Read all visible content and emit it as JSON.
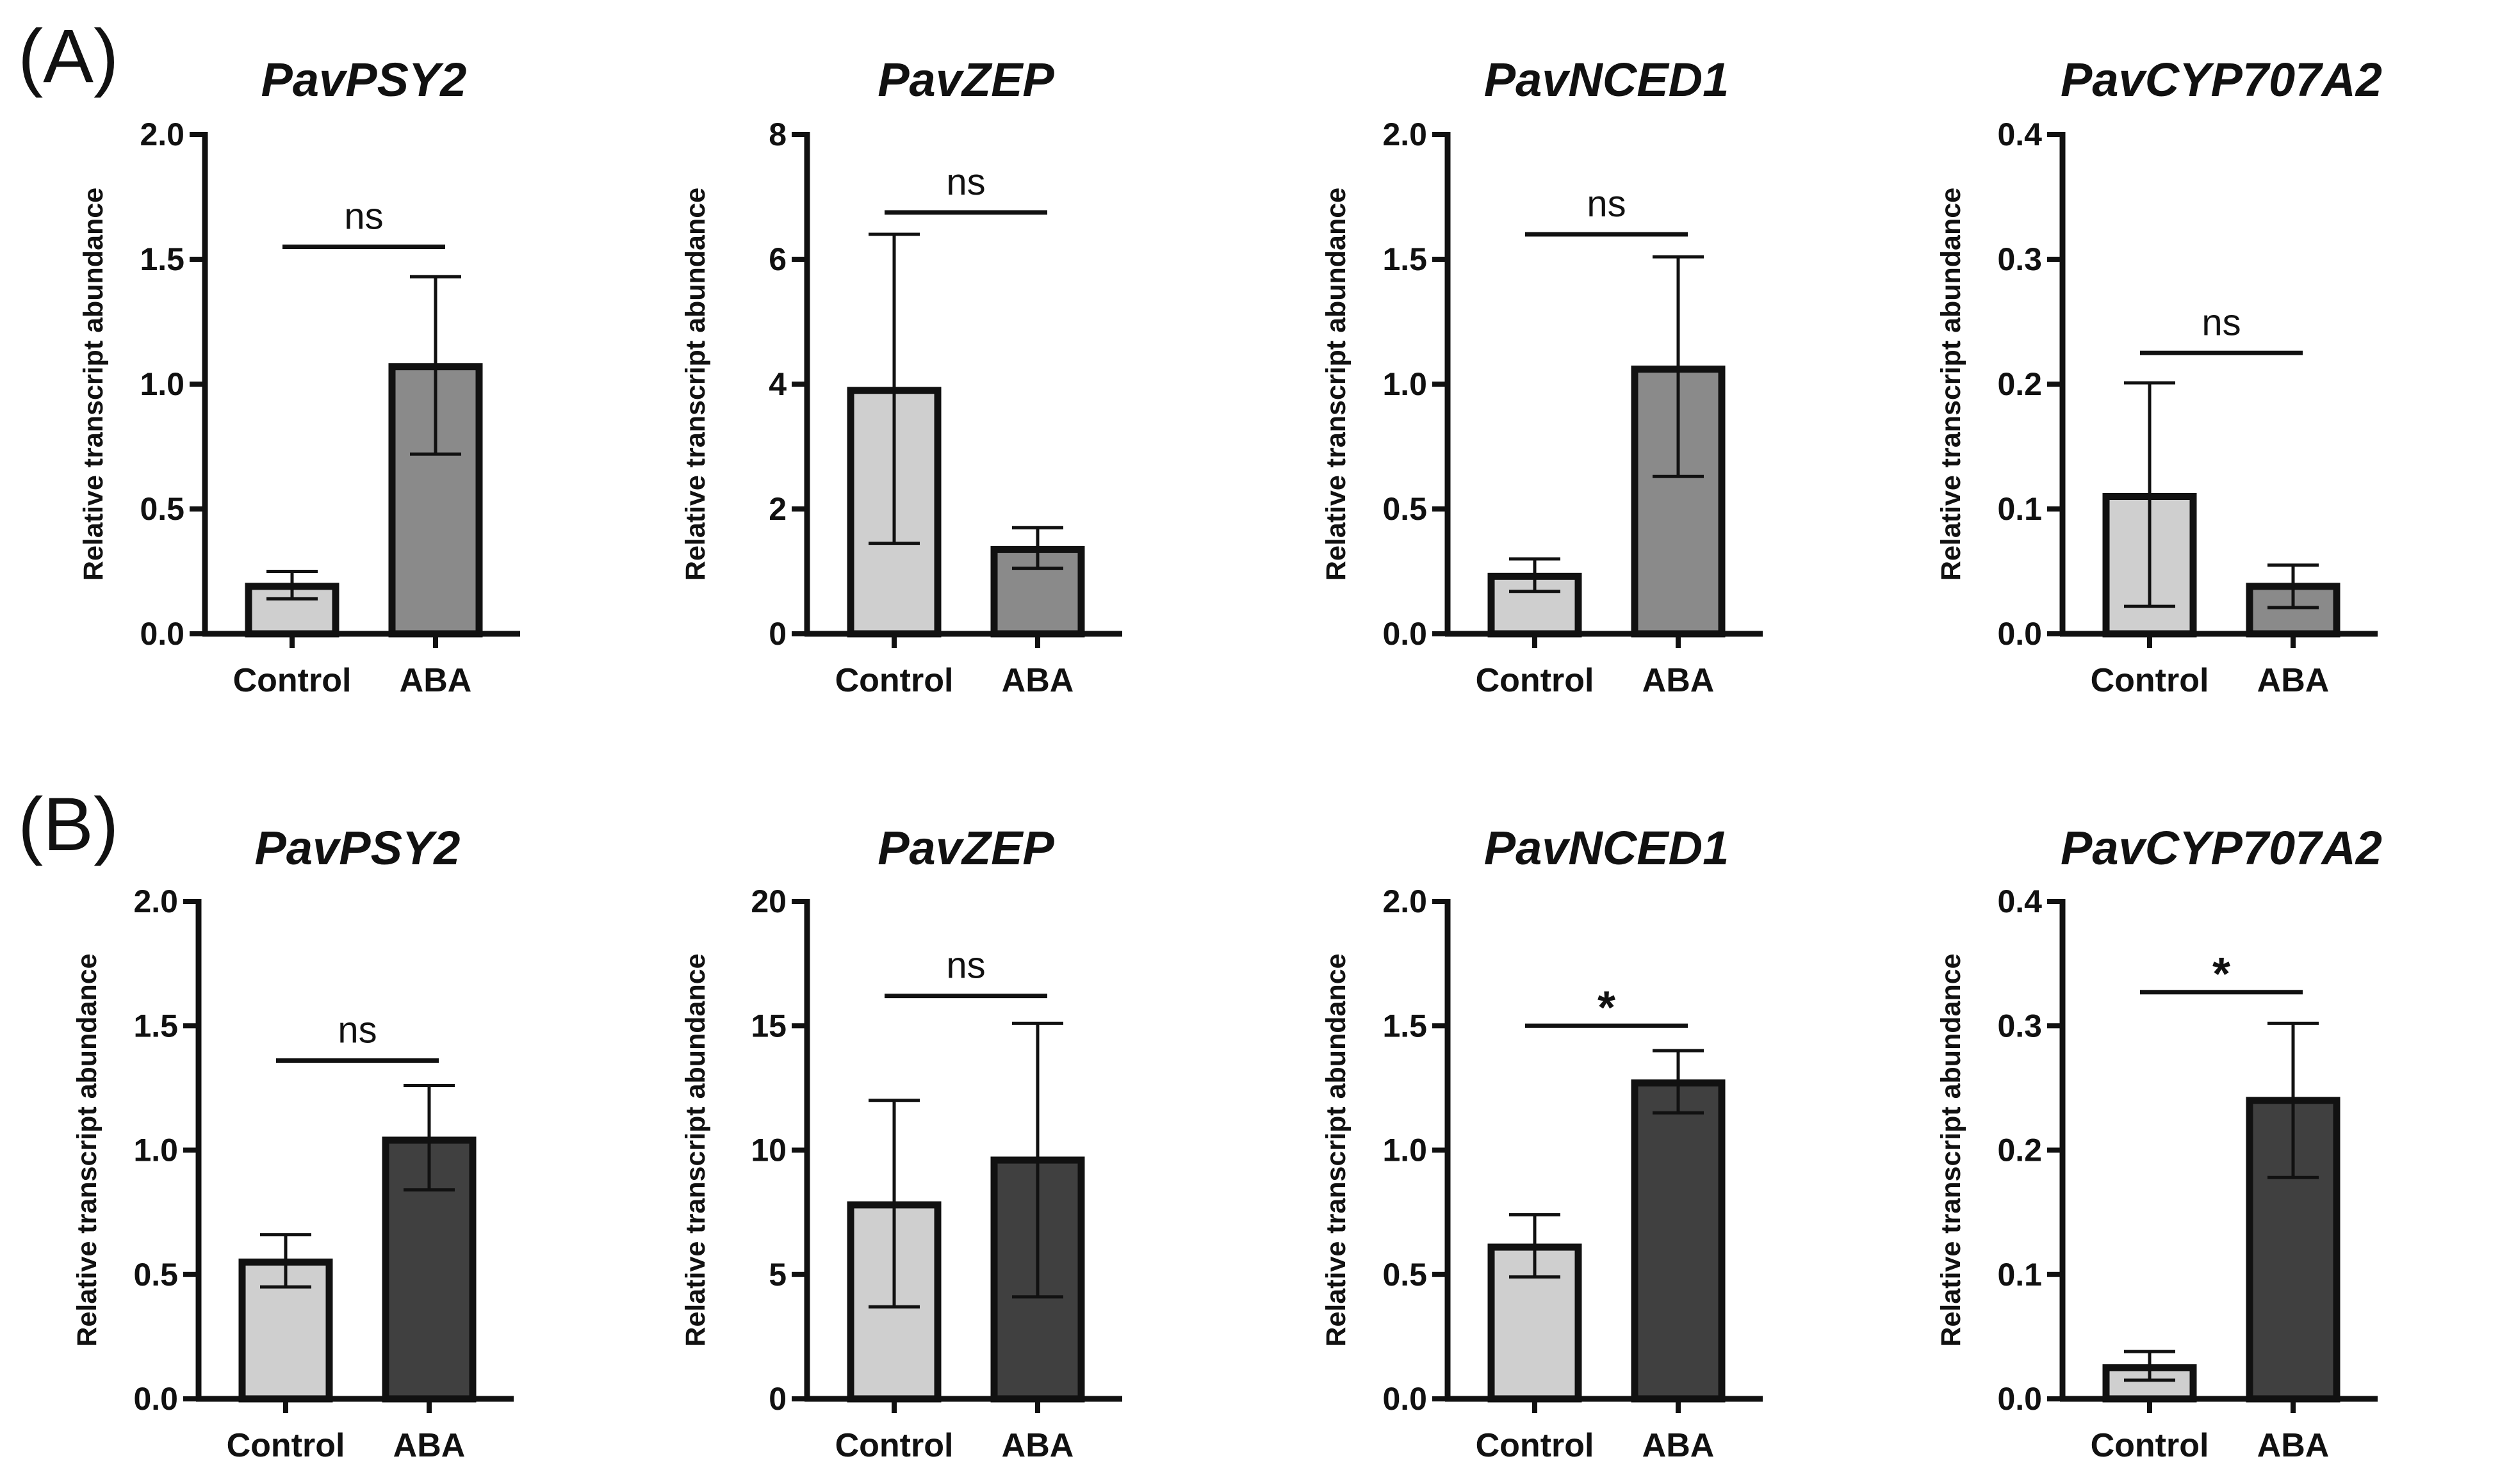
{
  "figure": {
    "panels": [
      {
        "label": "(A)"
      },
      {
        "label": "(B)"
      }
    ]
  },
  "chart_data": [
    {
      "id": "A1",
      "panel": "(A)",
      "type": "bar",
      "title": "PavPSY2",
      "ylabel": "Relative transcript abundance",
      "xlabel": "",
      "categories": [
        "Control",
        "ABA"
      ],
      "values": [
        0.19,
        1.07
      ],
      "errors": [
        [
          0.14,
          0.25
        ],
        [
          0.72,
          1.43
        ]
      ],
      "bar_colors": [
        "#cfcfcf",
        "#8a8a8a"
      ],
      "ylim": [
        0,
        2.0
      ],
      "yticks": [
        "0.0",
        "0.5",
        "1.0",
        "1.5",
        "2.0"
      ],
      "significance": "ns",
      "sig_level": 1.55
    },
    {
      "id": "A2",
      "panel": "(A)",
      "type": "bar",
      "title": "PavZEP",
      "ylabel": "Relative transcript abundance",
      "xlabel": "",
      "categories": [
        "Control",
        "ABA"
      ],
      "values": [
        3.9,
        1.35
      ],
      "errors": [
        [
          1.45,
          6.4
        ],
        [
          1.05,
          1.7
        ]
      ],
      "bar_colors": [
        "#cfcfcf",
        "#8a8a8a"
      ],
      "ylim": [
        0,
        8
      ],
      "yticks": [
        "0",
        "2",
        "4",
        "6",
        "8"
      ],
      "significance": "ns",
      "sig_level": 6.75
    },
    {
      "id": "A3",
      "panel": "(A)",
      "type": "bar",
      "title": "PavNCED1",
      "ylabel": "Relative transcript abundance",
      "xlabel": "",
      "categories": [
        "Control",
        "ABA"
      ],
      "values": [
        0.23,
        1.06
      ],
      "errors": [
        [
          0.17,
          0.3
        ],
        [
          0.63,
          1.51
        ]
      ],
      "bar_colors": [
        "#cfcfcf",
        "#8a8a8a"
      ],
      "ylim": [
        0,
        2.0
      ],
      "yticks": [
        "0.0",
        "0.5",
        "1.0",
        "1.5",
        "2.0"
      ],
      "significance": "ns",
      "sig_level": 1.6
    },
    {
      "id": "A4",
      "panel": "(A)",
      "type": "bar",
      "title": "PavCYP707A2",
      "ylabel": "Relative transcript abundance",
      "xlabel": "",
      "categories": [
        "Control",
        "ABA"
      ],
      "values": [
        0.11,
        0.038
      ],
      "errors": [
        [
          0.022,
          0.201
        ],
        [
          0.021,
          0.055
        ]
      ],
      "bar_colors": [
        "#cfcfcf",
        "#8a8a8a"
      ],
      "ylim": [
        0,
        0.4
      ],
      "yticks": [
        "0.0",
        "0.1",
        "0.2",
        "0.3",
        "0.4"
      ],
      "significance": "ns",
      "sig_level": 0.225
    },
    {
      "id": "B1",
      "panel": "(B)",
      "type": "bar",
      "title": "PavPSY2",
      "ylabel": "Relative transcript abundance",
      "xlabel": "",
      "categories": [
        "Control",
        "ABA"
      ],
      "values": [
        0.55,
        1.04
      ],
      "errors": [
        [
          0.45,
          0.66
        ],
        [
          0.84,
          1.26
        ]
      ],
      "bar_colors": [
        "#cfcfcf",
        "#404040"
      ],
      "ylim": [
        0,
        2.0
      ],
      "yticks": [
        "0.0",
        "0.5",
        "1.0",
        "1.5",
        "2.0"
      ],
      "significance": "ns",
      "sig_level": 1.36
    },
    {
      "id": "B2",
      "panel": "(B)",
      "type": "bar",
      "title": "PavZEP",
      "ylabel": "Relative transcript abundance",
      "xlabel": "",
      "categories": [
        "Control",
        "ABA"
      ],
      "values": [
        7.8,
        9.6
      ],
      "errors": [
        [
          3.7,
          12.0
        ],
        [
          4.1,
          15.1
        ]
      ],
      "bar_colors": [
        "#cfcfcf",
        "#404040"
      ],
      "ylim": [
        0,
        20
      ],
      "yticks": [
        "0",
        "5",
        "10",
        "15",
        "20"
      ],
      "significance": "ns",
      "sig_level": 16.2
    },
    {
      "id": "B3",
      "panel": "(B)",
      "type": "bar",
      "title": "PavNCED1",
      "ylabel": "Relative transcript abundance",
      "xlabel": "",
      "categories": [
        "Control",
        "ABA"
      ],
      "values": [
        0.61,
        1.27
      ],
      "errors": [
        [
          0.49,
          0.74
        ],
        [
          1.15,
          1.4
        ]
      ],
      "bar_colors": [
        "#cfcfcf",
        "#404040"
      ],
      "ylim": [
        0,
        2.0
      ],
      "yticks": [
        "0.0",
        "0.5",
        "1.0",
        "1.5",
        "2.0"
      ],
      "significance": "*",
      "sig_level": 1.5
    },
    {
      "id": "B4",
      "panel": "(B)",
      "type": "bar",
      "title": "PavCYP707A2",
      "ylabel": "Relative transcript abundance",
      "xlabel": "",
      "categories": [
        "Control",
        "ABA"
      ],
      "values": [
        0.025,
        0.24
      ],
      "errors": [
        [
          0.015,
          0.038
        ],
        [
          0.178,
          0.302
        ]
      ],
      "bar_colors": [
        "#cfcfcf",
        "#404040"
      ],
      "ylim": [
        0,
        0.4
      ],
      "yticks": [
        "0.0",
        "0.1",
        "0.2",
        "0.3",
        "0.4"
      ],
      "significance": "*",
      "sig_level": 0.327
    }
  ]
}
